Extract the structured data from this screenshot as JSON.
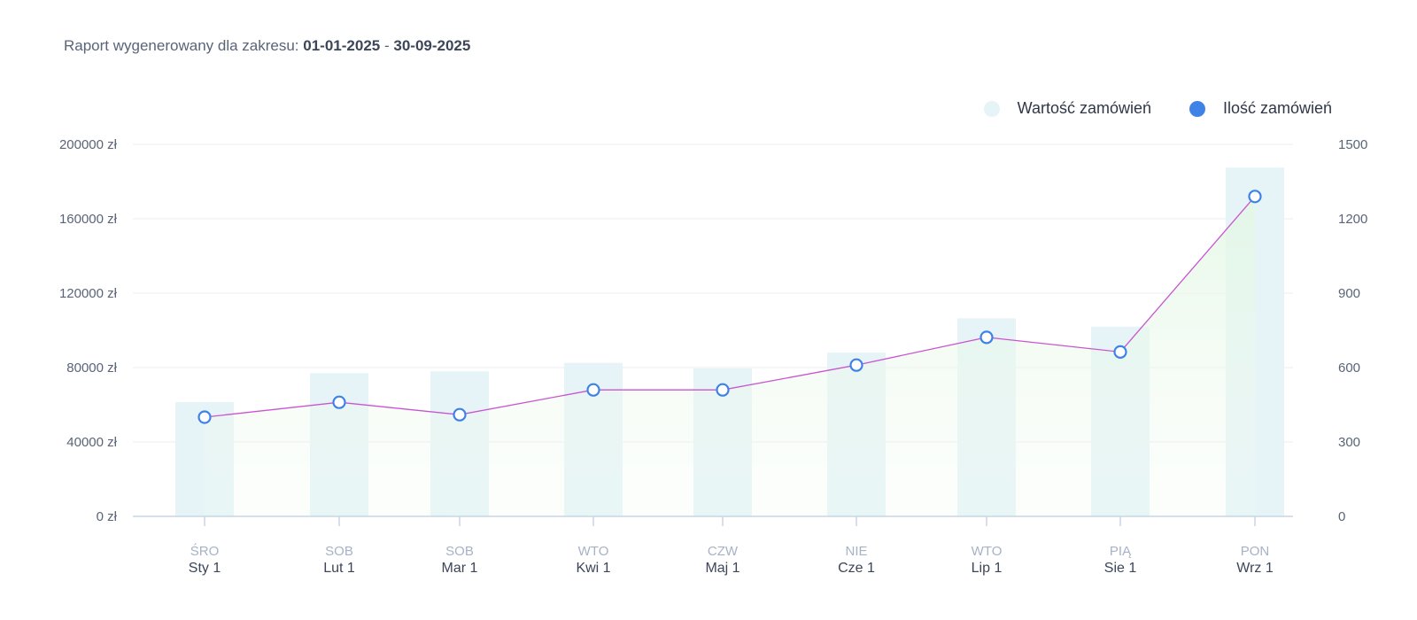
{
  "header": {
    "prefix": "Raport wygenerowany dla zakresu:",
    "date_from": "01-01-2025",
    "separator": "-",
    "date_to": "30-09-2025"
  },
  "legend": {
    "items": [
      {
        "label": "Wartość zamówień",
        "color": "#e6f4f7"
      },
      {
        "label": "Ilość zamówień",
        "color": "#3f82e6"
      }
    ]
  },
  "chart_data": {
    "type": "bar",
    "categories": [
      {
        "day": "ŚRO",
        "date": "Sty 1"
      },
      {
        "day": "SOB",
        "date": "Lut 1"
      },
      {
        "day": "SOB",
        "date": "Mar 1"
      },
      {
        "day": "WTO",
        "date": "Kwi 1"
      },
      {
        "day": "CZW",
        "date": "Maj 1"
      },
      {
        "day": "NIE",
        "date": "Cze 1"
      },
      {
        "day": "WTO",
        "date": "Lip 1"
      },
      {
        "day": "PIĄ",
        "date": "Sie 1"
      },
      {
        "day": "PON",
        "date": "Wrz 1"
      }
    ],
    "series": [
      {
        "name": "Wartość zamówień",
        "type": "bar",
        "axis": "left",
        "color": "#e6f4f7",
        "values": [
          61500,
          77000,
          78000,
          82500,
          79500,
          88000,
          106500,
          102000,
          187500
        ]
      },
      {
        "name": "Ilość zamówień",
        "type": "line",
        "axis": "right",
        "line_color": "#c855d0",
        "marker_color": "#3f82e6",
        "values": [
          400,
          460,
          410,
          510,
          510,
          610,
          722,
          663,
          1290
        ]
      }
    ],
    "y_left": {
      "min": 0,
      "max": 200000,
      "ticks": [
        0,
        40000,
        80000,
        120000,
        160000,
        200000
      ],
      "tick_labels": [
        "0 zł",
        "40000 zł",
        "80000 zł",
        "120000 zł",
        "160000 zł",
        "200000 zł"
      ]
    },
    "y_right": {
      "min": 0,
      "max": 1500,
      "ticks": [
        0,
        300,
        600,
        900,
        1200,
        1500
      ],
      "tick_labels": [
        "0",
        "300",
        "600",
        "900",
        "1200",
        "1500"
      ]
    },
    "grid": true,
    "legend_position": "top-right"
  }
}
